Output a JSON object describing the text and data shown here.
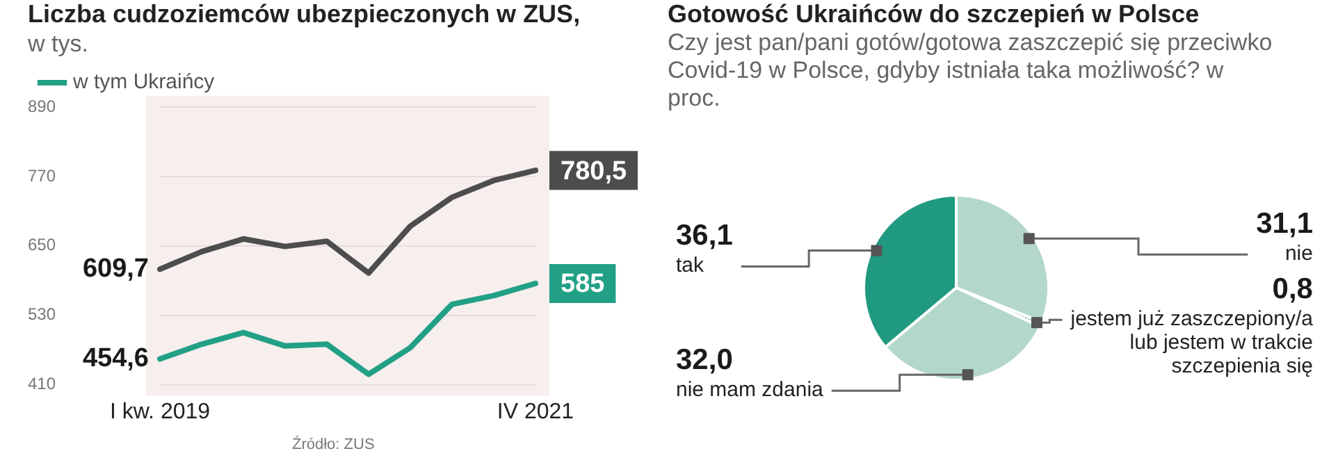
{
  "chart_data": [
    {
      "type": "line",
      "title": "Liczba cudzoziemców ubezpieczonych w ZUS,",
      "subtitle": "w tys.",
      "categories": [
        "I kw. 2019",
        null,
        null,
        null,
        null,
        null,
        null,
        null,
        null,
        "IV 2021"
      ],
      "series": [
        {
          "color": "#4d4d4d",
          "values": [
            609.7,
            640,
            662,
            649,
            658,
            603,
            684,
            734,
            763,
            780.5
          ],
          "value_labels": [
            "609,7",
            null,
            null,
            null,
            null,
            null,
            null,
            null,
            null,
            "780,5"
          ]
        },
        {
          "name": "w tym Ukraińcy",
          "color": "#22a086",
          "values": [
            454.6,
            480,
            500,
            477,
            480,
            428,
            474,
            549,
            564,
            585
          ],
          "value_labels": [
            "454,6",
            null,
            null,
            null,
            null,
            null,
            null,
            null,
            null,
            "585"
          ]
        }
      ],
      "ylim": [
        410,
        890
      ],
      "yticks": [
        410,
        530,
        650,
        770,
        890
      ],
      "grid": "y",
      "legend": "top left",
      "marker": "none",
      "annotations": [
        "Źródło: ZUS"
      ]
    },
    {
      "type": "pie",
      "title": "Gotowość Ukraińców do szczepień w Polsce",
      "subtitle": "Czy jest pan/pani gotów/gotowa zaszczepić się przeciwko Covid-19 w Polsce, gdyby istniała taka możliwość? w proc.",
      "categories": [
        "nie",
        "jestem już zaszczepiony/a lub jestem w trakcie szczepienia się",
        "nie mam zdania",
        "tak"
      ],
      "values": [
        31.1,
        0.8,
        32.0,
        36.1
      ],
      "value_labels": [
        "31,1",
        "0,8",
        "32,0",
        "36,1"
      ],
      "colors": [
        "#b3d8ca",
        "#b3d8ca",
        "#b3d8ca",
        "#1f9a80"
      ],
      "legend": false
    }
  ]
}
